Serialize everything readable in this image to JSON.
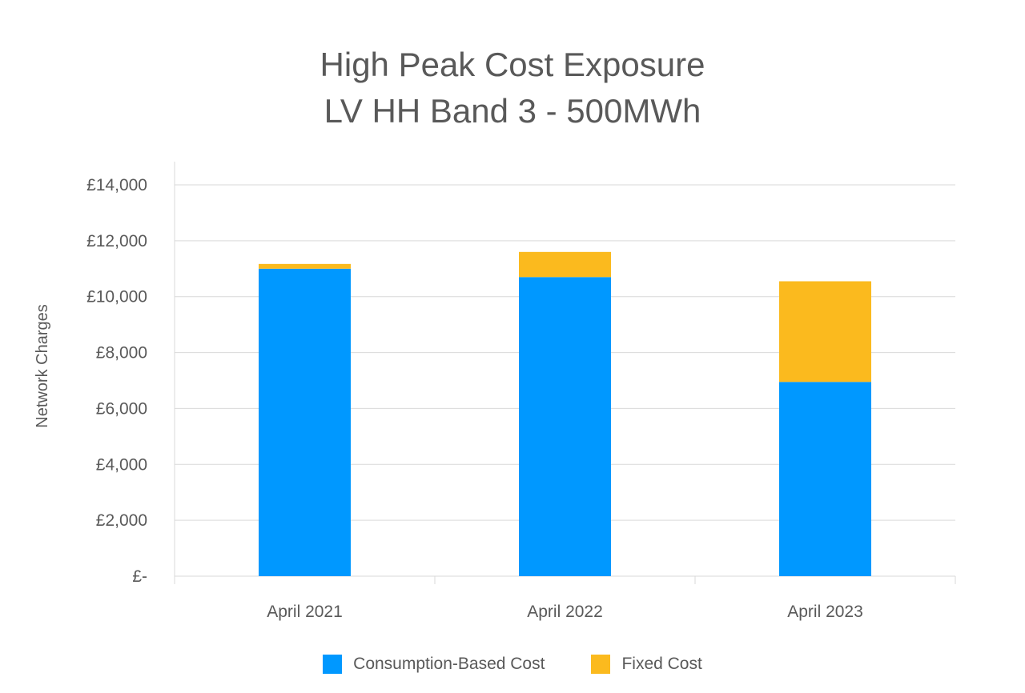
{
  "chart_data": {
    "type": "bar",
    "stacked": true,
    "title": [
      "High Peak Cost Exposure",
      "LV HH Band 3 - 500MWh"
    ],
    "ylabel": "Network Charges",
    "xlabel": "",
    "categories": [
      "April 2021",
      "April 2022",
      "April 2023"
    ],
    "ylim": [
      0,
      14000
    ],
    "yticks": [
      0,
      2000,
      4000,
      6000,
      8000,
      10000,
      12000,
      14000
    ],
    "ytick_labels": [
      "£-",
      "£2,000",
      "£4,000",
      "£6,000",
      "£8,000",
      "£10,000",
      "£12,000",
      "£14,000"
    ],
    "grid": true,
    "legend_position": "bottom",
    "series": [
      {
        "name": "Consumption-Based Cost",
        "color": "#0098FF",
        "values": [
          11000,
          10700,
          6950
        ]
      },
      {
        "name": "Fixed Cost",
        "color": "#FBBA1E",
        "values": [
          170,
          900,
          3600
        ]
      }
    ]
  }
}
